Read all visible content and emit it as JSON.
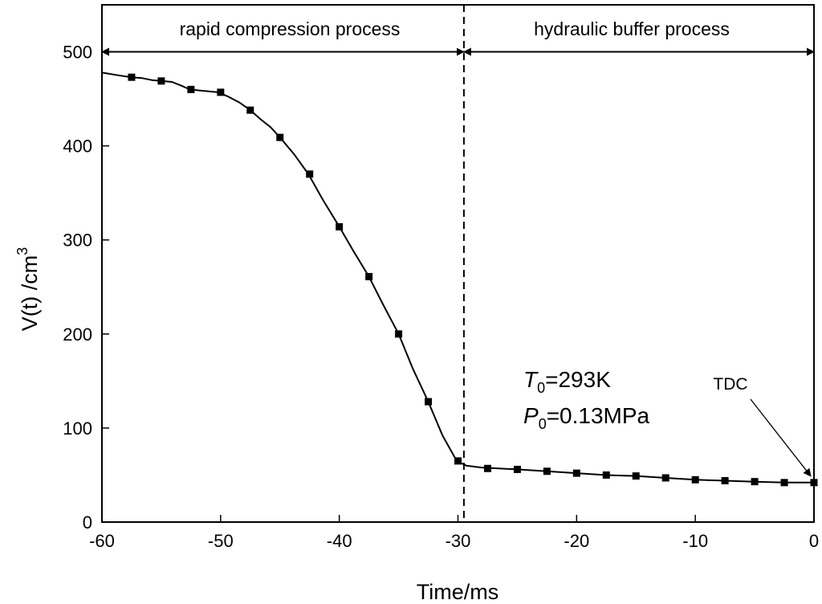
{
  "chart_data": {
    "type": "line",
    "title": "",
    "xlabel": "Time/ms",
    "ylabel": "V(t) /cm",
    "ylabel_superscript": "3",
    "xlim": [
      -60,
      0
    ],
    "ylim": [
      0,
      550
    ],
    "x_ticks": [
      -60,
      -50,
      -40,
      -30,
      -20,
      -10,
      0
    ],
    "y_ticks": [
      0,
      100,
      200,
      300,
      400,
      500
    ],
    "grid": false,
    "series": [
      {
        "name": "V(t)",
        "x": [
          -60,
          -58.6,
          -57.5,
          -56.6,
          -55.8,
          -55,
          -54.1,
          -53.3,
          -52.6,
          -51.8,
          -51,
          -50.2,
          -49.3,
          -48.4,
          -47.5,
          -46.6,
          -45.8,
          -45,
          -43.8,
          -42.6,
          -41.4,
          -40,
          -38.8,
          -37.5,
          -36.3,
          -35,
          -33.8,
          -32.5,
          -31.3,
          -30.1,
          -29.3,
          -28,
          -25,
          -22.5,
          -20,
          -17.5,
          -15,
          -12.5,
          -10,
          -7.5,
          -5,
          -2.5,
          0
        ],
        "y": [
          478,
          475,
          473,
          472,
          470,
          469,
          468,
          464,
          460,
          459,
          458,
          457,
          452,
          446,
          438,
          428,
          420,
          409,
          391,
          370,
          343,
          314,
          288,
          261,
          231,
          200,
          163,
          128,
          92,
          65,
          60,
          58,
          56,
          54,
          52,
          50,
          49,
          47,
          45,
          44,
          43,
          42,
          42
        ]
      }
    ],
    "markers": {
      "x": [
        -57.5,
        -55,
        -52.5,
        -50,
        -47.5,
        -45,
        -42.5,
        -40,
        -37.5,
        -35,
        -32.5,
        -30,
        -27.5,
        -25,
        -22.5,
        -20,
        -17.5,
        -15,
        -12.5,
        -10,
        -7.5,
        -5,
        -2.5,
        0
      ],
      "y": [
        473,
        469,
        460,
        457,
        438,
        409,
        370,
        314,
        261,
        200,
        128,
        65,
        57,
        56,
        54,
        52,
        50,
        49,
        47,
        45,
        44,
        43,
        42,
        42
      ]
    },
    "divider_x": -29.5,
    "regions": [
      {
        "label": "rapid compression process",
        "from": -60,
        "to": -29.5,
        "y": 500
      },
      {
        "label": "hydraulic buffer process",
        "from": -29.5,
        "to": 0,
        "y": 500
      }
    ],
    "annotations": {
      "t0_symbol": "T",
      "t0_sub": "0",
      "t0_value": "=293K",
      "p0_symbol": "P",
      "p0_sub": "0",
      "p0_value": "=0.13MPa",
      "tdc_label": "TDC",
      "tdc_point": {
        "x": 0,
        "y": 42
      }
    }
  },
  "colors": {
    "line": "#000000",
    "background": "#ffffff"
  }
}
